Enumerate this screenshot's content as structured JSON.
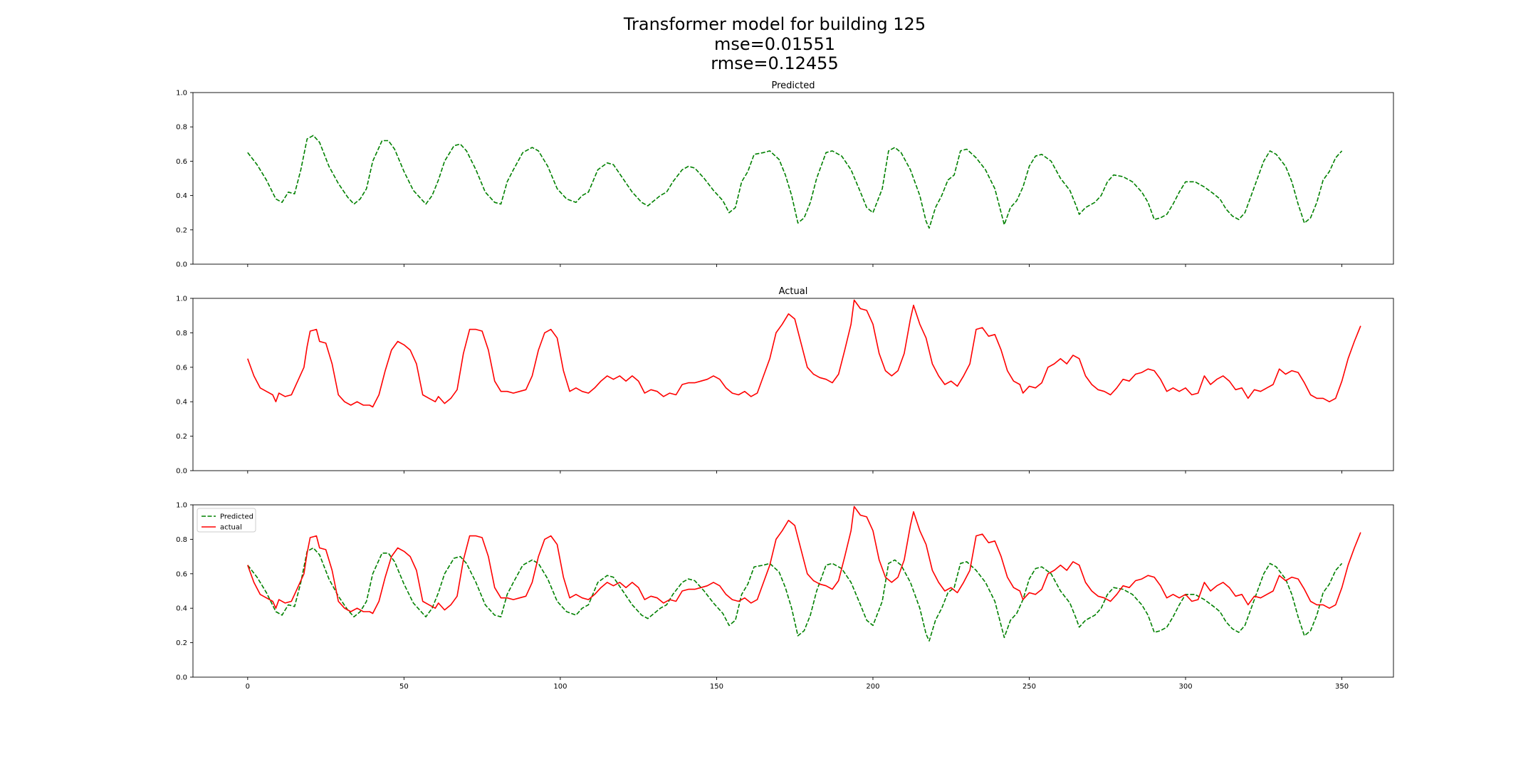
{
  "figure": {
    "title_lines": [
      "Transformer model for building 125",
      "mse=0.01551",
      "rmse=0.12455"
    ]
  },
  "colors": {
    "predicted": "#008000",
    "actual": "#ff0000"
  },
  "chart_data": [
    {
      "type": "line",
      "title": "Predicted",
      "xlim": [
        -17.5,
        366.5
      ],
      "ylim": [
        0,
        1.0
      ],
      "xticks": [
        0,
        50,
        100,
        150,
        200,
        250,
        300,
        350
      ],
      "yticks": [
        "0.0",
        "0.2",
        "0.4",
        "0.6",
        "0.8",
        "1.0"
      ],
      "show_xtick_labels": false,
      "series": [
        {
          "ref": "predicted",
          "style": "dashed",
          "color": "#008000"
        }
      ]
    },
    {
      "type": "line",
      "title": "Actual",
      "xlim": [
        -17.5,
        366.5
      ],
      "ylim": [
        0,
        1.0
      ],
      "xticks": [
        0,
        50,
        100,
        150,
        200,
        250,
        300,
        350
      ],
      "yticks": [
        "0.0",
        "0.2",
        "0.4",
        "0.6",
        "0.8",
        "1.0"
      ],
      "show_xtick_labels": false,
      "series": [
        {
          "ref": "actual",
          "style": "solid",
          "color": "#ff0000"
        }
      ]
    },
    {
      "type": "line",
      "title": "",
      "xlim": [
        -17.5,
        366.5
      ],
      "ylim": [
        0,
        1.0
      ],
      "xticks": [
        0,
        50,
        100,
        150,
        200,
        250,
        300,
        350
      ],
      "xtick_labels": [
        "0",
        "50",
        "100",
        "150",
        "200",
        "250",
        "300",
        "350"
      ],
      "yticks": [
        "0.0",
        "0.2",
        "0.4",
        "0.6",
        "0.8",
        "1.0"
      ],
      "show_xtick_labels": true,
      "legend": {
        "placement": "upper-left",
        "entries": [
          "Predicted",
          "actual"
        ]
      },
      "series": [
        {
          "name": "Predicted",
          "ref": "predicted",
          "style": "dashed",
          "color": "#008000"
        },
        {
          "name": "actual",
          "ref": "actual",
          "style": "solid",
          "color": "#ff0000"
        }
      ]
    }
  ],
  "series_data": {
    "predicted": [
      [
        0,
        0.65
      ],
      [
        3,
        0.58
      ],
      [
        6,
        0.49
      ],
      [
        9,
        0.38
      ],
      [
        11,
        0.36
      ],
      [
        13,
        0.42
      ],
      [
        15,
        0.41
      ],
      [
        17,
        0.55
      ],
      [
        19,
        0.73
      ],
      [
        21,
        0.75
      ],
      [
        23,
        0.71
      ],
      [
        26,
        0.57
      ],
      [
        29,
        0.47
      ],
      [
        32,
        0.39
      ],
      [
        34,
        0.35
      ],
      [
        36,
        0.38
      ],
      [
        38,
        0.44
      ],
      [
        40,
        0.6
      ],
      [
        43,
        0.72
      ],
      [
        45,
        0.72
      ],
      [
        47,
        0.67
      ],
      [
        50,
        0.54
      ],
      [
        53,
        0.43
      ],
      [
        56,
        0.37
      ],
      [
        57,
        0.35
      ],
      [
        59,
        0.4
      ],
      [
        61,
        0.49
      ],
      [
        63,
        0.6
      ],
      [
        66,
        0.69
      ],
      [
        68,
        0.7
      ],
      [
        70,
        0.66
      ],
      [
        73,
        0.55
      ],
      [
        76,
        0.42
      ],
      [
        79,
        0.36
      ],
      [
        81,
        0.35
      ],
      [
        83,
        0.48
      ],
      [
        85,
        0.55
      ],
      [
        88,
        0.65
      ],
      [
        91,
        0.68
      ],
      [
        93,
        0.66
      ],
      [
        96,
        0.57
      ],
      [
        99,
        0.44
      ],
      [
        102,
        0.38
      ],
      [
        105,
        0.36
      ],
      [
        107,
        0.4
      ],
      [
        109,
        0.42
      ],
      [
        112,
        0.55
      ],
      [
        115,
        0.59
      ],
      [
        117,
        0.58
      ],
      [
        120,
        0.5
      ],
      [
        123,
        0.42
      ],
      [
        126,
        0.36
      ],
      [
        128,
        0.34
      ],
      [
        130,
        0.37
      ],
      [
        132,
        0.4
      ],
      [
        134,
        0.42
      ],
      [
        136,
        0.48
      ],
      [
        139,
        0.55
      ],
      [
        141,
        0.57
      ],
      [
        143,
        0.56
      ],
      [
        146,
        0.5
      ],
      [
        149,
        0.43
      ],
      [
        152,
        0.37
      ],
      [
        154,
        0.3
      ],
      [
        156,
        0.33
      ],
      [
        158,
        0.48
      ],
      [
        160,
        0.54
      ],
      [
        162,
        0.64
      ],
      [
        165,
        0.65
      ],
      [
        167,
        0.66
      ],
      [
        170,
        0.61
      ],
      [
        172,
        0.52
      ],
      [
        174,
        0.4
      ],
      [
        176,
        0.24
      ],
      [
        178,
        0.27
      ],
      [
        180,
        0.36
      ],
      [
        182,
        0.5
      ],
      [
        185,
        0.65
      ],
      [
        187,
        0.66
      ],
      [
        190,
        0.63
      ],
      [
        193,
        0.55
      ],
      [
        196,
        0.42
      ],
      [
        198,
        0.33
      ],
      [
        200,
        0.3
      ],
      [
        203,
        0.44
      ],
      [
        205,
        0.66
      ],
      [
        207,
        0.68
      ],
      [
        209,
        0.65
      ],
      [
        212,
        0.55
      ],
      [
        215,
        0.4
      ],
      [
        217,
        0.25
      ],
      [
        218,
        0.21
      ],
      [
        220,
        0.33
      ],
      [
        222,
        0.4
      ],
      [
        224,
        0.49
      ],
      [
        226,
        0.52
      ],
      [
        228,
        0.66
      ],
      [
        230,
        0.67
      ],
      [
        233,
        0.62
      ],
      [
        236,
        0.55
      ],
      [
        239,
        0.44
      ],
      [
        241,
        0.3
      ],
      [
        242,
        0.23
      ],
      [
        244,
        0.33
      ],
      [
        246,
        0.37
      ],
      [
        248,
        0.45
      ],
      [
        250,
        0.57
      ],
      [
        252,
        0.63
      ],
      [
        254,
        0.64
      ],
      [
        257,
        0.6
      ],
      [
        260,
        0.5
      ],
      [
        263,
        0.43
      ],
      [
        265,
        0.34
      ],
      [
        266,
        0.29
      ],
      [
        268,
        0.33
      ],
      [
        271,
        0.36
      ],
      [
        273,
        0.4
      ],
      [
        275,
        0.48
      ],
      [
        277,
        0.52
      ],
      [
        280,
        0.51
      ],
      [
        283,
        0.48
      ],
      [
        286,
        0.42
      ],
      [
        288,
        0.36
      ],
      [
        290,
        0.26
      ],
      [
        292,
        0.27
      ],
      [
        294,
        0.29
      ],
      [
        296,
        0.35
      ],
      [
        298,
        0.42
      ],
      [
        300,
        0.48
      ],
      [
        303,
        0.48
      ],
      [
        306,
        0.45
      ],
      [
        309,
        0.41
      ],
      [
        311,
        0.38
      ],
      [
        313,
        0.32
      ],
      [
        315,
        0.28
      ],
      [
        317,
        0.26
      ],
      [
        319,
        0.3
      ],
      [
        321,
        0.4
      ],
      [
        323,
        0.5
      ],
      [
        325,
        0.6
      ],
      [
        327,
        0.66
      ],
      [
        329,
        0.64
      ],
      [
        332,
        0.57
      ],
      [
        334,
        0.48
      ],
      [
        336,
        0.35
      ],
      [
        338,
        0.24
      ],
      [
        340,
        0.27
      ],
      [
        342,
        0.36
      ],
      [
        344,
        0.49
      ],
      [
        346,
        0.54
      ],
      [
        348,
        0.62
      ],
      [
        350,
        0.66
      ]
    ],
    "actual": [
      [
        0,
        0.65
      ],
      [
        2,
        0.55
      ],
      [
        4,
        0.48
      ],
      [
        6,
        0.46
      ],
      [
        8,
        0.44
      ],
      [
        9,
        0.4
      ],
      [
        10,
        0.45
      ],
      [
        12,
        0.43
      ],
      [
        14,
        0.44
      ],
      [
        16,
        0.52
      ],
      [
        18,
        0.6
      ],
      [
        19,
        0.72
      ],
      [
        20,
        0.81
      ],
      [
        22,
        0.82
      ],
      [
        23,
        0.75
      ],
      [
        25,
        0.74
      ],
      [
        27,
        0.62
      ],
      [
        29,
        0.44
      ],
      [
        31,
        0.4
      ],
      [
        33,
        0.38
      ],
      [
        35,
        0.4
      ],
      [
        37,
        0.38
      ],
      [
        39,
        0.38
      ],
      [
        40,
        0.37
      ],
      [
        42,
        0.44
      ],
      [
        44,
        0.58
      ],
      [
        46,
        0.7
      ],
      [
        48,
        0.75
      ],
      [
        50,
        0.73
      ],
      [
        52,
        0.7
      ],
      [
        54,
        0.62
      ],
      [
        56,
        0.44
      ],
      [
        58,
        0.42
      ],
      [
        60,
        0.4
      ],
      [
        61,
        0.43
      ],
      [
        63,
        0.39
      ],
      [
        65,
        0.42
      ],
      [
        67,
        0.47
      ],
      [
        69,
        0.68
      ],
      [
        71,
        0.82
      ],
      [
        73,
        0.82
      ],
      [
        75,
        0.81
      ],
      [
        77,
        0.7
      ],
      [
        79,
        0.52
      ],
      [
        81,
        0.46
      ],
      [
        83,
        0.46
      ],
      [
        85,
        0.45
      ],
      [
        87,
        0.46
      ],
      [
        89,
        0.47
      ],
      [
        91,
        0.55
      ],
      [
        93,
        0.7
      ],
      [
        95,
        0.8
      ],
      [
        97,
        0.82
      ],
      [
        99,
        0.77
      ],
      [
        101,
        0.58
      ],
      [
        103,
        0.46
      ],
      [
        105,
        0.48
      ],
      [
        107,
        0.46
      ],
      [
        109,
        0.45
      ],
      [
        111,
        0.48
      ],
      [
        113,
        0.52
      ],
      [
        115,
        0.55
      ],
      [
        117,
        0.53
      ],
      [
        119,
        0.55
      ],
      [
        121,
        0.52
      ],
      [
        123,
        0.55
      ],
      [
        125,
        0.52
      ],
      [
        127,
        0.45
      ],
      [
        129,
        0.47
      ],
      [
        131,
        0.46
      ],
      [
        133,
        0.43
      ],
      [
        135,
        0.45
      ],
      [
        137,
        0.44
      ],
      [
        139,
        0.5
      ],
      [
        141,
        0.51
      ],
      [
        143,
        0.51
      ],
      [
        145,
        0.52
      ],
      [
        147,
        0.53
      ],
      [
        149,
        0.55
      ],
      [
        151,
        0.53
      ],
      [
        153,
        0.48
      ],
      [
        155,
        0.45
      ],
      [
        157,
        0.44
      ],
      [
        159,
        0.46
      ],
      [
        161,
        0.43
      ],
      [
        163,
        0.45
      ],
      [
        165,
        0.55
      ],
      [
        167,
        0.65
      ],
      [
        169,
        0.8
      ],
      [
        171,
        0.85
      ],
      [
        173,
        0.91
      ],
      [
        175,
        0.88
      ],
      [
        177,
        0.74
      ],
      [
        179,
        0.6
      ],
      [
        181,
        0.56
      ],
      [
        183,
        0.54
      ],
      [
        185,
        0.53
      ],
      [
        187,
        0.51
      ],
      [
        189,
        0.56
      ],
      [
        191,
        0.7
      ],
      [
        193,
        0.85
      ],
      [
        194,
        0.99
      ],
      [
        196,
        0.94
      ],
      [
        198,
        0.93
      ],
      [
        200,
        0.85
      ],
      [
        202,
        0.68
      ],
      [
        204,
        0.58
      ],
      [
        206,
        0.55
      ],
      [
        208,
        0.58
      ],
      [
        210,
        0.68
      ],
      [
        212,
        0.88
      ],
      [
        213,
        0.96
      ],
      [
        215,
        0.85
      ],
      [
        217,
        0.77
      ],
      [
        219,
        0.62
      ],
      [
        221,
        0.55
      ],
      [
        223,
        0.5
      ],
      [
        225,
        0.52
      ],
      [
        227,
        0.49
      ],
      [
        229,
        0.55
      ],
      [
        231,
        0.62
      ],
      [
        233,
        0.82
      ],
      [
        235,
        0.83
      ],
      [
        237,
        0.78
      ],
      [
        239,
        0.79
      ],
      [
        241,
        0.7
      ],
      [
        243,
        0.58
      ],
      [
        245,
        0.52
      ],
      [
        247,
        0.5
      ],
      [
        248,
        0.45
      ],
      [
        250,
        0.49
      ],
      [
        252,
        0.48
      ],
      [
        254,
        0.51
      ],
      [
        256,
        0.6
      ],
      [
        258,
        0.62
      ],
      [
        260,
        0.65
      ],
      [
        262,
        0.62
      ],
      [
        264,
        0.67
      ],
      [
        266,
        0.65
      ],
      [
        268,
        0.55
      ],
      [
        270,
        0.5
      ],
      [
        272,
        0.47
      ],
      [
        274,
        0.46
      ],
      [
        276,
        0.44
      ],
      [
        278,
        0.48
      ],
      [
        280,
        0.53
      ],
      [
        282,
        0.52
      ],
      [
        284,
        0.56
      ],
      [
        286,
        0.57
      ],
      [
        288,
        0.59
      ],
      [
        290,
        0.58
      ],
      [
        292,
        0.53
      ],
      [
        294,
        0.46
      ],
      [
        296,
        0.48
      ],
      [
        298,
        0.46
      ],
      [
        300,
        0.48
      ],
      [
        302,
        0.44
      ],
      [
        304,
        0.45
      ],
      [
        306,
        0.55
      ],
      [
        308,
        0.5
      ],
      [
        310,
        0.53
      ],
      [
        312,
        0.55
      ],
      [
        314,
        0.52
      ],
      [
        316,
        0.47
      ],
      [
        318,
        0.48
      ],
      [
        320,
        0.42
      ],
      [
        322,
        0.47
      ],
      [
        324,
        0.46
      ],
      [
        326,
        0.48
      ],
      [
        328,
        0.5
      ],
      [
        330,
        0.59
      ],
      [
        332,
        0.56
      ],
      [
        334,
        0.58
      ],
      [
        336,
        0.57
      ],
      [
        338,
        0.51
      ],
      [
        340,
        0.44
      ],
      [
        342,
        0.42
      ],
      [
        344,
        0.42
      ],
      [
        346,
        0.4
      ],
      [
        348,
        0.42
      ],
      [
        350,
        0.52
      ],
      [
        352,
        0.65
      ],
      [
        354,
        0.75
      ],
      [
        356,
        0.84
      ]
    ]
  }
}
